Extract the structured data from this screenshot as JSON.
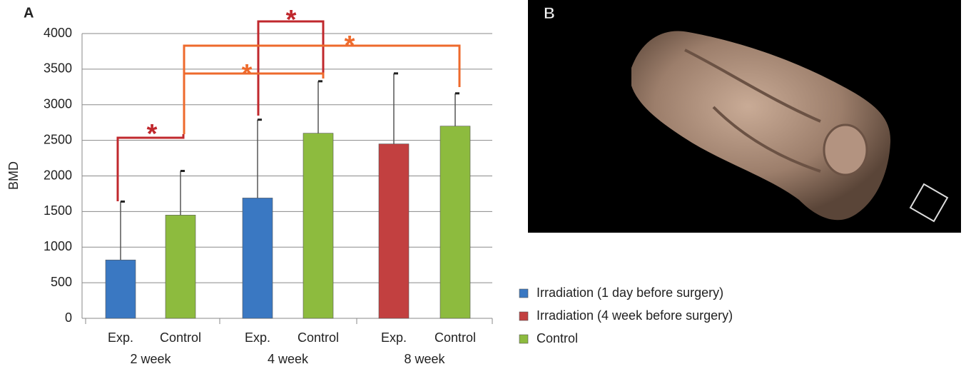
{
  "chart_data": {
    "type": "bar",
    "ylabel": "BMD",
    "categories": [
      "Exp.",
      "Control",
      "Exp.",
      "Control",
      "Exp.",
      "Control"
    ],
    "groups": [
      "2 week",
      "4 week",
      "8 week"
    ],
    "ylim": [
      0,
      4000
    ],
    "yticks": [
      0,
      500,
      1000,
      1500,
      2000,
      2500,
      3000,
      3500,
      4000
    ],
    "grid": true,
    "series": [
      {
        "name": "Irradiation (1 day before surgery)",
        "color": "#3a78c2",
        "values": [
          820,
          null,
          1690,
          null,
          null,
          null
        ],
        "errors": [
          820,
          null,
          1100,
          null,
          null,
          null
        ]
      },
      {
        "name": "Irradiation (4 week before surgery)",
        "color": "#c24040",
        "values": [
          null,
          null,
          null,
          null,
          2450,
          null
        ],
        "errors": [
          null,
          null,
          null,
          null,
          990,
          null
        ]
      },
      {
        "name": "Control",
        "color": "#8dbb3e",
        "values": [
          null,
          1450,
          null,
          2600,
          null,
          2700
        ],
        "errors": [
          null,
          620,
          null,
          730,
          null,
          460
        ]
      }
    ],
    "annotations": [
      {
        "text": "*",
        "color": "#c0282d"
      },
      {
        "text": "*",
        "color": "#c0282d"
      },
      {
        "text": "*",
        "color": "#ee6a2c"
      },
      {
        "text": "*",
        "color": "#ee6a2c"
      }
    ]
  },
  "panel_labels": [
    "A",
    "B"
  ]
}
